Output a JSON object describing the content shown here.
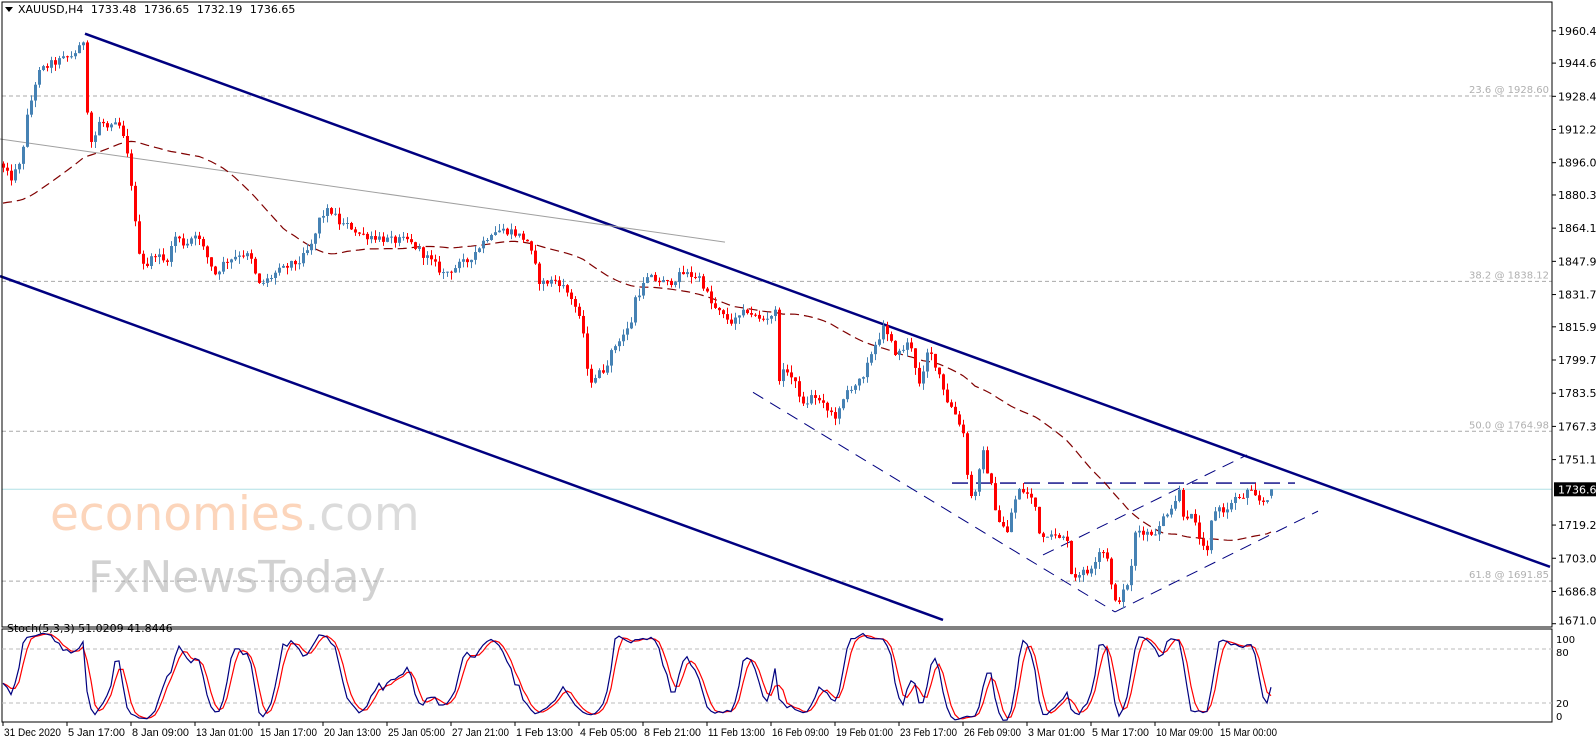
{
  "header": {
    "symbol_timeframe": "XAUUSD,H4",
    "open": "1733.48",
    "high": "1736.65",
    "low": "1732.19",
    "close": "1736.65"
  },
  "watermark": {
    "line1_main": "economies",
    "line1_suffix": ".com",
    "line2": "FxNewsToday"
  },
  "colors": {
    "bull": "#4682B4",
    "bear": "#FF0000",
    "channel": "#000080",
    "ma": "#800000",
    "gray_trend": "#A0A0A0",
    "current_price_line": "#B0E0E6",
    "stoch_k": "#000080",
    "stoch_d": "#FF0000",
    "fib": "#A9A9A9"
  },
  "chart_data": {
    "type": "candlestick",
    "title": "XAUUSD,H4",
    "current_price": 1736.65,
    "last_bar": {
      "open": 1733.48,
      "high": 1736.65,
      "low": 1732.19,
      "close": 1736.65
    },
    "bar_count": 318,
    "price_axis": {
      "range": [
        1671.05,
        1960.4
      ],
      "ticks": [
        "1960.40",
        "1944.65",
        "1928.45",
        "1912.25",
        "1896.05",
        "1880.30",
        "1864.10",
        "1847.90",
        "1831.70",
        "1815.95",
        "1799.75",
        "1783.55",
        "1767.35",
        "1751.15",
        "1719.20",
        "1703.00",
        "1686.80",
        "1671.05"
      ],
      "current_label": "1736.65"
    },
    "time_axis": {
      "labels": [
        "31 Dec 2020",
        "5 Jan 17:00",
        "8 Jan 09:00",
        "13 Jan 01:00",
        "15 Jan 17:00",
        "20 Jan 13:00",
        "25 Jan 05:00",
        "27 Jan 21:00",
        "1 Feb 13:00",
        "4 Feb 05:00",
        "8 Feb 21:00",
        "11 Feb 13:00",
        "16 Feb 09:00",
        "19 Feb 01:00",
        "23 Feb 17:00",
        "26 Feb 09:00",
        "3 Mar 01:00",
        "5 Mar 17:00",
        "10 Mar 09:00",
        "15 Mar 00:00"
      ],
      "bars_per_label": 16
    },
    "close_waypoints": [
      [
        0,
        1893
      ],
      [
        1.75,
        1888
      ],
      [
        4.25,
        1895
      ],
      [
        6,
        1918
      ],
      [
        8,
        1935
      ],
      [
        9.25,
        1941
      ],
      [
        11.75,
        1944
      ],
      [
        14.25,
        1946
      ],
      [
        16.75,
        1948
      ],
      [
        19.25,
        1952
      ],
      [
        20.25,
        1957
      ],
      [
        21.25,
        1911
      ],
      [
        22.25,
        1905
      ],
      [
        24.25,
        1917
      ],
      [
        26.25,
        1912
      ],
      [
        28.75,
        1915
      ],
      [
        30.5,
        1905
      ],
      [
        31.75,
        1891
      ],
      [
        33.5,
        1856
      ],
      [
        35.5,
        1845
      ],
      [
        38,
        1852
      ],
      [
        40.5,
        1847
      ],
      [
        43,
        1860
      ],
      [
        45.5,
        1856
      ],
      [
        48,
        1862
      ],
      [
        50.5,
        1852
      ],
      [
        53,
        1842
      ],
      [
        55.5,
        1848
      ],
      [
        59.25,
        1852
      ],
      [
        61.75,
        1850
      ],
      [
        63.75,
        1836
      ],
      [
        65.5,
        1838
      ],
      [
        68,
        1842
      ],
      [
        71.75,
        1846
      ],
      [
        74.25,
        1848
      ],
      [
        77.25,
        1856
      ],
      [
        79.25,
        1870
      ],
      [
        81.75,
        1873
      ],
      [
        84.25,
        1866
      ],
      [
        86.75,
        1865
      ],
      [
        89.25,
        1861
      ],
      [
        93,
        1860
      ],
      [
        96.75,
        1858
      ],
      [
        101,
        1858
      ],
      [
        104.25,
        1853
      ],
      [
        110,
        1842
      ],
      [
        116,
        1848
      ],
      [
        122.25,
        1863
      ],
      [
        126.75,
        1863
      ],
      [
        131,
        1858
      ],
      [
        134.25,
        1837
      ],
      [
        138.5,
        1839
      ],
      [
        142.5,
        1829
      ],
      [
        145,
        1813
      ],
      [
        146.25,
        1789
      ],
      [
        150,
        1795
      ],
      [
        153.5,
        1809
      ],
      [
        156.75,
        1816
      ],
      [
        158,
        1830
      ],
      [
        161.25,
        1840
      ],
      [
        166,
        1837
      ],
      [
        170,
        1842
      ],
      [
        174.25,
        1840
      ],
      [
        177.25,
        1826
      ],
      [
        180,
        1821
      ],
      [
        182.5,
        1818
      ],
      [
        186,
        1824
      ],
      [
        189.25,
        1819
      ],
      [
        193,
        1823
      ],
      [
        193.75,
        1791
      ],
      [
        196,
        1795
      ],
      [
        198.75,
        1785
      ],
      [
        200,
        1777
      ],
      [
        202.5,
        1783
      ],
      [
        206,
        1775
      ],
      [
        208.5,
        1772
      ],
      [
        211.25,
        1786
      ],
      [
        215,
        1790
      ],
      [
        217.25,
        1805
      ],
      [
        220,
        1815
      ],
      [
        223.5,
        1802
      ],
      [
        226.75,
        1809
      ],
      [
        229.25,
        1785
      ],
      [
        231.25,
        1805
      ],
      [
        233.5,
        1796
      ],
      [
        236,
        1780
      ],
      [
        238.5,
        1772
      ],
      [
        240,
        1764
      ],
      [
        241,
        1745
      ],
      [
        242.25,
        1730
      ],
      [
        244.25,
        1747
      ],
      [
        245,
        1754
      ],
      [
        247.25,
        1736
      ],
      [
        248.5,
        1723
      ],
      [
        251,
        1715
      ],
      [
        252.25,
        1728
      ],
      [
        254.25,
        1737
      ],
      [
        256.75,
        1733
      ],
      [
        258.5,
        1726
      ],
      [
        259.25,
        1712
      ],
      [
        261.75,
        1717
      ],
      [
        263.5,
        1712
      ],
      [
        266,
        1713
      ],
      [
        267.25,
        1692
      ],
      [
        268.5,
        1696
      ],
      [
        271,
        1696
      ],
      [
        272.5,
        1701
      ],
      [
        274.25,
        1708
      ],
      [
        276,
        1704
      ],
      [
        277.25,
        1686
      ],
      [
        278,
        1681
      ],
      [
        280,
        1686
      ],
      [
        281.75,
        1694
      ],
      [
        283,
        1715
      ],
      [
        284.25,
        1717
      ],
      [
        286.75,
        1715
      ],
      [
        289.25,
        1718
      ],
      [
        290,
        1723
      ],
      [
        291.75,
        1728
      ],
      [
        293.5,
        1733
      ],
      [
        294.25,
        1737
      ],
      [
        295,
        1725
      ],
      [
        297.25,
        1723
      ],
      [
        299.25,
        1712
      ],
      [
        300.5,
        1704
      ],
      [
        301.25,
        1706
      ],
      [
        302.25,
        1725
      ],
      [
        303.5,
        1728
      ],
      [
        306,
        1726
      ],
      [
        307.5,
        1733
      ],
      [
        309.25,
        1731
      ],
      [
        311.25,
        1736
      ],
      [
        313.75,
        1731
      ],
      [
        315.5,
        1731
      ],
      [
        317,
        1736.65
      ]
    ],
    "moving_average": {
      "type": "SMA",
      "period": 50,
      "style": "dashed"
    },
    "trendlines": [
      {
        "name": "upper-channel-line",
        "style": "solid-thick",
        "points": [
          [
            20.5,
            1959.0
          ],
          [
            386.75,
            1698.8
          ]
        ]
      },
      {
        "name": "lower-channel-line",
        "style": "solid-thick",
        "points": [
          [
            -0.75,
            1840.7
          ],
          [
            235,
            1672.9
          ]
        ]
      },
      {
        "name": "gray-trend-line",
        "style": "solid-thin",
        "points": [
          [
            -0.75,
            1907.6
          ],
          [
            180.5,
            1857.3
          ]
        ]
      },
      {
        "name": "wedge-descending-line",
        "style": "dashed",
        "points": [
          [
            187.5,
            1784.0
          ],
          [
            278,
            1676.8
          ]
        ]
      },
      {
        "name": "wedge-lower-ascending-line",
        "style": "dashed",
        "points": [
          [
            278,
            1676.8
          ],
          [
            328.75,
            1726.0
          ]
        ]
      },
      {
        "name": "wedge-upper-ascending-line",
        "style": "dashed",
        "points": [
          [
            260,
            1704.6
          ],
          [
            311,
            1753.4
          ]
        ]
      },
      {
        "name": "neckline-horizontal",
        "style": "long-dashed",
        "points": [
          [
            237.25,
            1739.7
          ],
          [
            323,
            1739.7
          ]
        ]
      }
    ],
    "fibonacci": [
      {
        "label": "23.6 @ 1928.60",
        "price": 1928.6
      },
      {
        "label": "38.2 @ 1838.12",
        "price": 1838.12
      },
      {
        "label": "50.0 @ 1764.98",
        "price": 1764.98
      },
      {
        "label": "61.8 @ 1691.85",
        "price": 1691.85
      }
    ],
    "stochastic": {
      "label": "Stoch(5,3,3)",
      "k_value": "51.0209",
      "d_value": "41.8446",
      "k_period": 5,
      "slowing": 3,
      "d_period": 3,
      "levels": [
        80,
        20
      ],
      "axis_labels": [
        "100",
        "80",
        "20",
        "0"
      ],
      "range": [
        0,
        100
      ]
    }
  }
}
